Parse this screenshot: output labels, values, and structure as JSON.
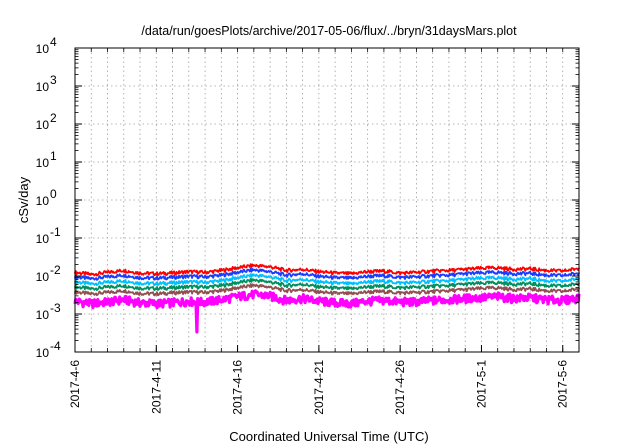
{
  "chart_data": {
    "type": "line",
    "title": "/data/run/goesPlots/archive/2017-05-06/flux/../bryn/31daysMars.plot",
    "xlabel": "Coordinated Universal Time (UTC)",
    "ylabel": "cSv/day",
    "xlim": [
      "2017-04-06",
      "2017-05-07"
    ],
    "yscale": "log",
    "ylim": [
      0.0001,
      10000
    ],
    "y_ticks": [
      {
        "base": "10",
        "exp": "4"
      },
      {
        "base": "10",
        "exp": "3"
      },
      {
        "base": "10",
        "exp": "2"
      },
      {
        "base": "10",
        "exp": "1"
      },
      {
        "base": "10",
        "exp": "0"
      },
      {
        "base": "10",
        "exp": "-1"
      },
      {
        "base": "10",
        "exp": "-2"
      },
      {
        "base": "10",
        "exp": "-3"
      },
      {
        "base": "10",
        "exp": "-4"
      }
    ],
    "x_tick_labels": [
      "2017-4-6",
      "2017-4-11",
      "2017-4-16",
      "2017-4-21",
      "2017-4-26",
      "2017-5-1",
      "2017-5-6"
    ],
    "grid": true,
    "legend": "none",
    "series": [
      {
        "color": "#ff0000",
        "days": [
          0,
          1,
          2,
          3,
          4,
          5,
          6,
          7,
          8,
          9,
          10,
          11,
          12,
          13,
          14,
          15,
          16,
          17,
          18,
          19,
          20,
          21,
          22,
          23,
          24,
          25,
          26,
          27,
          28,
          29,
          30,
          31
        ],
        "values": [
          0.0125,
          0.011,
          0.0125,
          0.014,
          0.012,
          0.0115,
          0.012,
          0.013,
          0.0125,
          0.014,
          0.0165,
          0.019,
          0.0175,
          0.014,
          0.015,
          0.013,
          0.012,
          0.0115,
          0.013,
          0.0135,
          0.012,
          0.0125,
          0.0135,
          0.014,
          0.015,
          0.016,
          0.0165,
          0.015,
          0.0155,
          0.014,
          0.0135,
          0.016
        ]
      },
      {
        "color": "#1a3cff",
        "days": [
          0,
          1,
          2,
          3,
          4,
          5,
          6,
          7,
          8,
          9,
          10,
          11,
          12,
          13,
          14,
          15,
          16,
          17,
          18,
          19,
          20,
          21,
          22,
          23,
          24,
          25,
          26,
          27,
          28,
          29,
          30,
          31
        ],
        "values": [
          0.0095,
          0.0085,
          0.0095,
          0.0105,
          0.009,
          0.0088,
          0.0092,
          0.0098,
          0.0095,
          0.0105,
          0.0125,
          0.0145,
          0.013,
          0.0105,
          0.0115,
          0.0098,
          0.009,
          0.0087,
          0.0098,
          0.0102,
          0.0092,
          0.0095,
          0.0102,
          0.0105,
          0.0115,
          0.012,
          0.0125,
          0.0115,
          0.0118,
          0.0105,
          0.0102,
          0.012
        ]
      },
      {
        "color": "#00c0ff",
        "days": [
          0,
          1,
          2,
          3,
          4,
          5,
          6,
          7,
          8,
          9,
          10,
          11,
          12,
          13,
          14,
          15,
          16,
          17,
          18,
          19,
          20,
          21,
          22,
          23,
          24,
          25,
          26,
          27,
          28,
          29,
          30,
          31
        ],
        "values": [
          0.007,
          0.0062,
          0.0068,
          0.0075,
          0.0065,
          0.0063,
          0.0066,
          0.007,
          0.0068,
          0.0075,
          0.009,
          0.0105,
          0.0095,
          0.0075,
          0.0082,
          0.007,
          0.0065,
          0.0062,
          0.007,
          0.0073,
          0.0066,
          0.0068,
          0.0073,
          0.0075,
          0.0082,
          0.0086,
          0.009,
          0.0082,
          0.0085,
          0.0075,
          0.0073,
          0.0086
        ]
      },
      {
        "color": "#009060",
        "days": [
          0,
          1,
          2,
          3,
          4,
          5,
          6,
          7,
          8,
          9,
          10,
          11,
          12,
          13,
          14,
          15,
          16,
          17,
          18,
          19,
          20,
          21,
          22,
          23,
          24,
          25,
          26,
          27,
          28,
          29,
          30,
          31
        ],
        "values": [
          0.0052,
          0.0046,
          0.0051,
          0.0056,
          0.0048,
          0.0047,
          0.0049,
          0.0052,
          0.0051,
          0.0056,
          0.0067,
          0.0078,
          0.007,
          0.0056,
          0.0061,
          0.0052,
          0.0048,
          0.0046,
          0.0052,
          0.0054,
          0.0049,
          0.0051,
          0.0054,
          0.0056,
          0.0061,
          0.0064,
          0.0067,
          0.0061,
          0.0063,
          0.0056,
          0.0054,
          0.0064
        ]
      },
      {
        "color": "#905050",
        "days": [
          0,
          1,
          2,
          3,
          4,
          5,
          6,
          7,
          8,
          9,
          10,
          11,
          12,
          13,
          14,
          15,
          16,
          17,
          18,
          19,
          20,
          21,
          22,
          23,
          24,
          25,
          26,
          27,
          28,
          29,
          30,
          31
        ],
        "values": [
          0.0038,
          0.0034,
          0.0037,
          0.0041,
          0.0035,
          0.0034,
          0.0036,
          0.0038,
          0.0037,
          0.0041,
          0.0049,
          0.0057,
          0.0051,
          0.0041,
          0.0044,
          0.0038,
          0.0035,
          0.0034,
          0.0038,
          0.0039,
          0.0036,
          0.0037,
          0.0039,
          0.0041,
          0.0044,
          0.0047,
          0.0049,
          0.0044,
          0.0046,
          0.0041,
          0.0039,
          0.0047
        ]
      },
      {
        "color": "#ff00ff",
        "days": [
          0,
          1,
          2,
          3,
          4,
          5,
          6,
          7,
          7.45,
          7.5,
          7.55,
          8,
          9,
          10,
          11,
          12,
          13,
          14,
          15,
          16,
          17,
          18,
          19,
          20,
          21,
          22,
          23,
          24,
          25,
          26,
          27,
          28,
          29,
          30,
          31
        ],
        "values": [
          0.0022,
          0.0019,
          0.0021,
          0.0024,
          0.002,
          0.0019,
          0.002,
          0.0022,
          0.0021,
          0.00036,
          0.0021,
          0.0021,
          0.0024,
          0.0029,
          0.0033,
          0.003,
          0.0023,
          0.0026,
          0.0022,
          0.002,
          0.0019,
          0.0022,
          0.0023,
          0.0021,
          0.0021,
          0.0023,
          0.0024,
          0.0026,
          0.0027,
          0.0029,
          0.0026,
          0.0027,
          0.0024,
          0.0023,
          0.0027
        ]
      }
    ]
  }
}
